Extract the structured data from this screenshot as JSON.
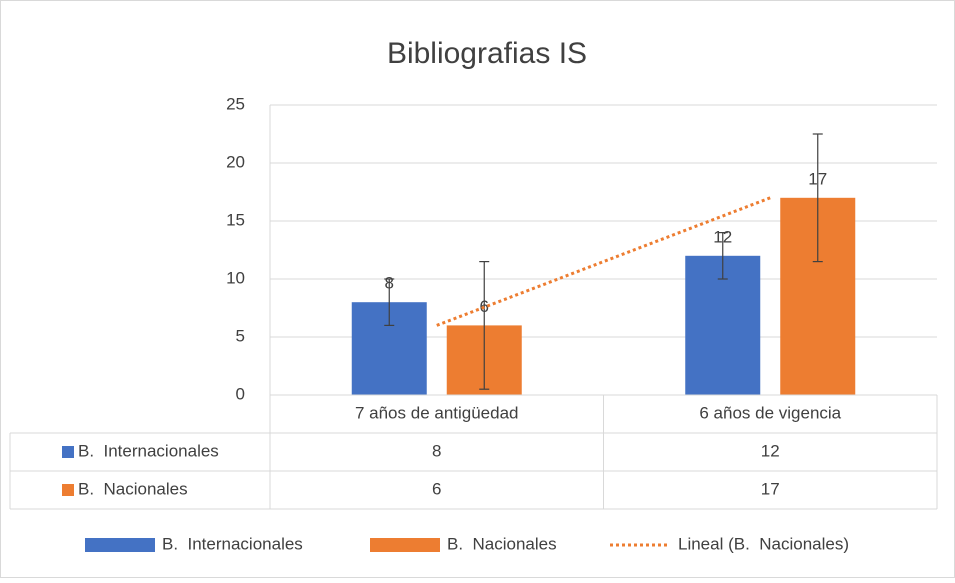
{
  "chart_data": {
    "type": "bar",
    "title": "Bibliografias IS",
    "categories": [
      "7 años de antigüedad",
      "6 años de vigencia"
    ],
    "series": [
      {
        "name": "B.  Internacionales",
        "color": "#4472c4",
        "values": [
          8,
          12
        ],
        "errors": [
          2,
          2
        ]
      },
      {
        "name": "B.  Nacionales",
        "color": "#ed7d31",
        "values": [
          6,
          17
        ],
        "errors": [
          5.5,
          5.5
        ]
      }
    ],
    "trendline": {
      "name": "Lineal (B.  Nacionales)",
      "color": "#ed7d31",
      "series": 1
    },
    "ylim": [
      0,
      25
    ],
    "yticks": [
      0,
      5,
      10,
      15,
      20,
      25
    ],
    "grid": true,
    "data_table": true,
    "legend": "bottom"
  }
}
